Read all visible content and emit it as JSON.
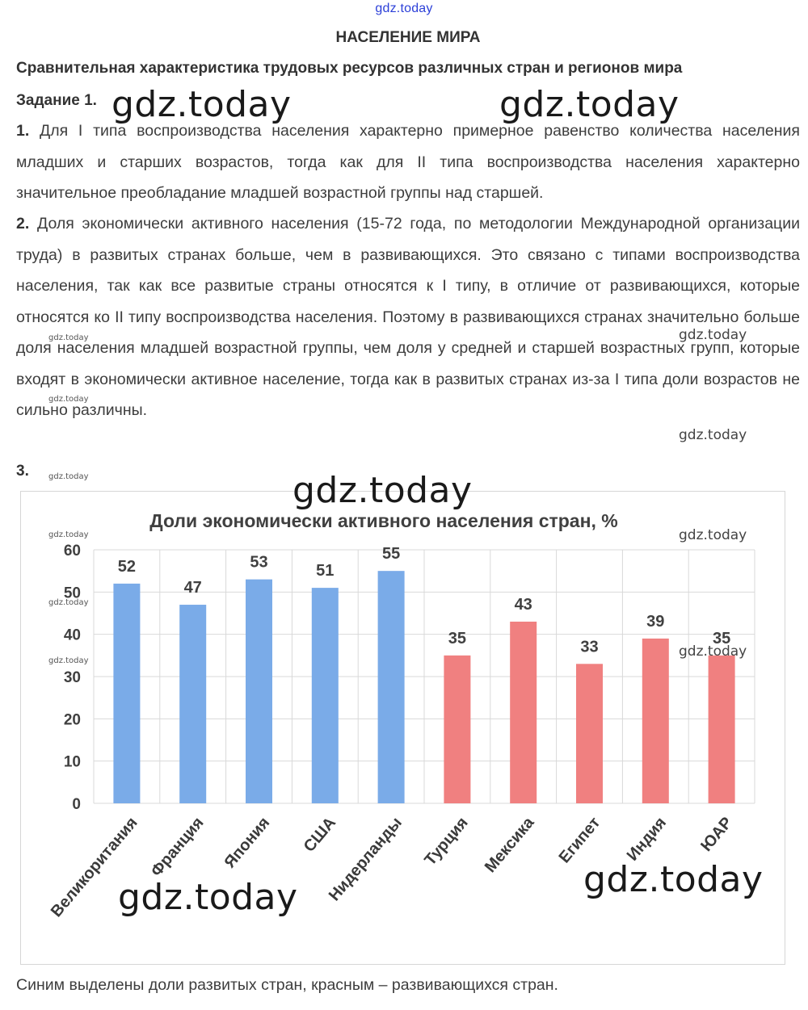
{
  "site": {
    "top_mark": "gdz.today"
  },
  "header": {
    "title": "НАСЕЛЕНИЕ МИРА",
    "subtitle": "Сравнительная характеристика трудовых ресурсов различных стран и регионов мира",
    "task": "Задание 1."
  },
  "content": {
    "p1_num": "1.",
    "p1_text": "Для I типа воспроизводства населения характерно примерное равенство количества населения младших и старших возрастов, тогда как для II типа воспроизводства населения характерно значительное преобладание младшей возрастной группы над старшей.",
    "p2_num": "2.",
    "p2_text": "Доля экономически активного населения (15-72 года, по методологии Международной организации труда) в развитых странах больше, чем в развивающихся. Это связано с типами воспроизводства населения, так как все развитые страны относятся к I типу, в отличие от развивающихся, которые относятся ко II типу воспроизводства населения. Поэтому в развивающихся странах значительно больше доля населения младшей возрастной группы, чем доля у средней и старшей возрастных групп, которые входят в экономически активное население, тогда как в развитых странах из-за I типа доли возрастов не сильно различны.",
    "p3_num": "3.",
    "caption": "Синим выделены доли развитых стран, красным – развивающихся стран."
  },
  "watermarks": {
    "big": "gdz.today",
    "small": "gdz.today",
    "tiny": "gdz.today"
  },
  "chart_data": {
    "type": "bar",
    "title": "Доли экономически активного населения стран, %",
    "categories": [
      "Великоритания",
      "Франция",
      "Япония",
      "США",
      "Нидерланды",
      "Турция",
      "Мексика",
      "Египет",
      "Индия",
      "ЮАР"
    ],
    "values": [
      52,
      47,
      53,
      51,
      55,
      35,
      43,
      33,
      39,
      35
    ],
    "bar_colors": [
      "#7aabe8",
      "#7aabe8",
      "#7aabe8",
      "#7aabe8",
      "#7aabe8",
      "#f08080",
      "#f08080",
      "#f08080",
      "#f08080",
      "#f08080"
    ],
    "ylim": [
      0,
      60
    ],
    "yticks": [
      0,
      10,
      20,
      30,
      40,
      50,
      60
    ],
    "grid": true,
    "legend": "none"
  }
}
